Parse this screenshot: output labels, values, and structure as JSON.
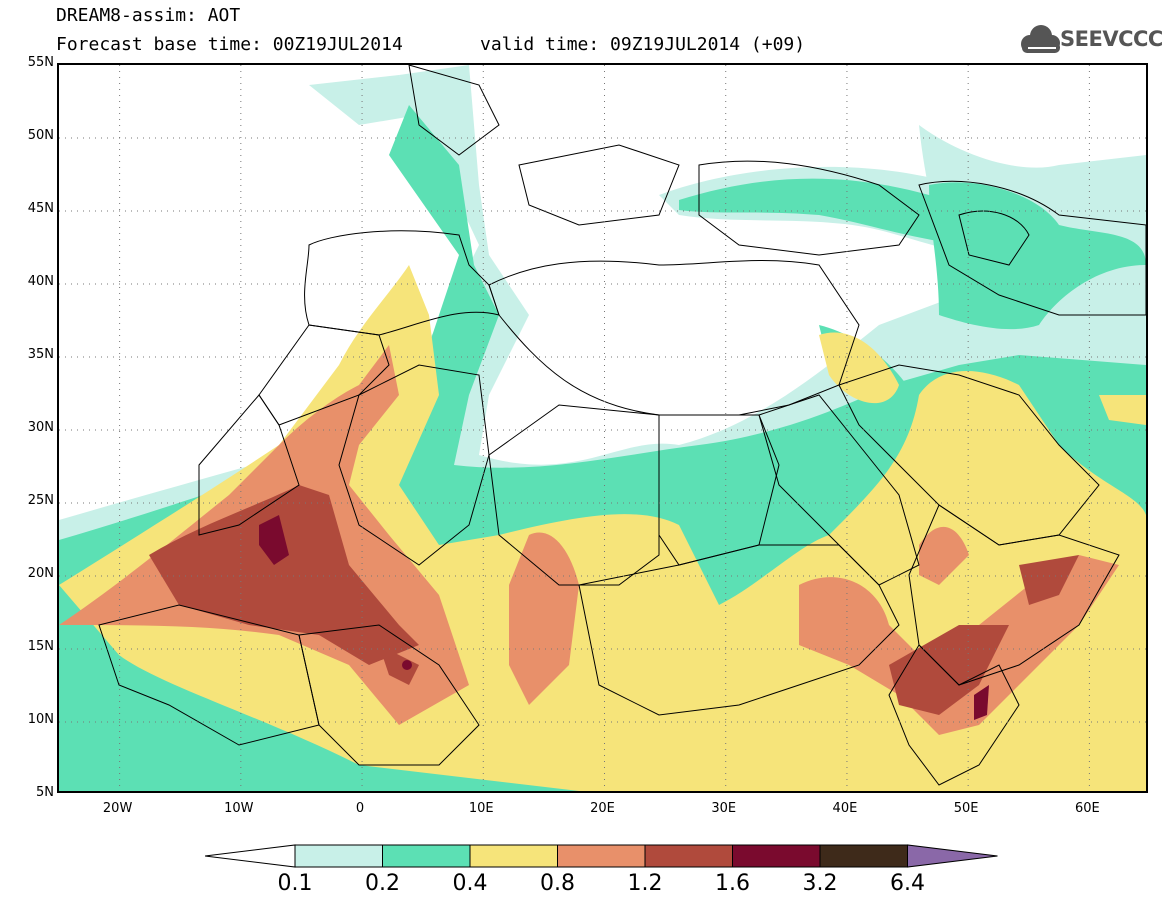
{
  "header": {
    "line1": "DREAM8-assim: AOT",
    "line2": "Forecast base time: 00Z19JUL2014",
    "valid": "valid time: 09Z19JUL2014 (+09)"
  },
  "logo": {
    "text": "SEEVCCC",
    "icon": "cloud-icon"
  },
  "map": {
    "lon_range": [
      -25,
      65
    ],
    "lat_range": [
      5,
      55
    ],
    "lat_labels": [
      "55N",
      "50N",
      "45N",
      "40N",
      "35N",
      "30N",
      "25N",
      "20N",
      "15N",
      "10N",
      "5N"
    ],
    "lon_labels": [
      "20W",
      "10W",
      "0",
      "10E",
      "20E",
      "30E",
      "40E",
      "50E",
      "60E"
    ],
    "grid": "dotted"
  },
  "colorbar": {
    "labels": [
      "0.1",
      "0.2",
      "0.4",
      "0.8",
      "1.2",
      "1.6",
      "3.2",
      "6.4"
    ],
    "colors": [
      "#ffffff",
      "#c8f0e8",
      "#5ce0b4",
      "#f6e47a",
      "#e8906a",
      "#b04a3c",
      "#7a0a2e",
      "#3e2a1a",
      "#8a68a8"
    ]
  }
}
